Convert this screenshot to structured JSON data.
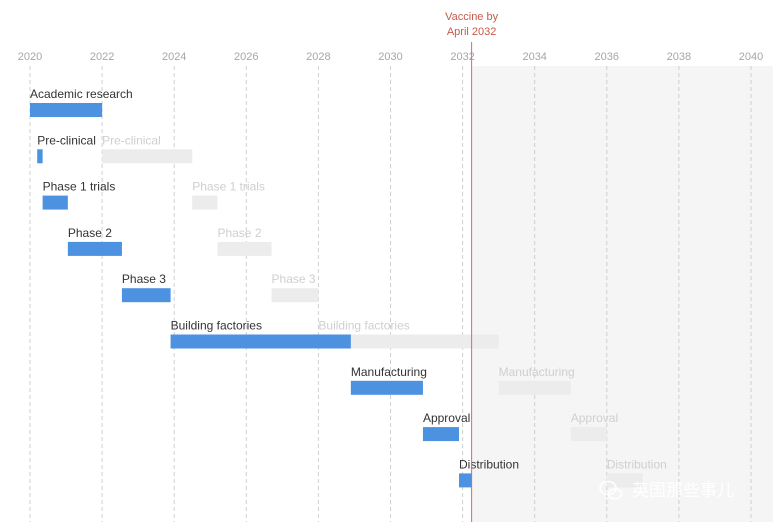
{
  "chart_data": {
    "type": "gantt",
    "x_axis": {
      "ticks": [
        "2020",
        "2022",
        "2024",
        "2026",
        "2028",
        "2030",
        "2032",
        "2034",
        "2036",
        "2038",
        "2040"
      ],
      "range": [
        2020,
        2040
      ]
    },
    "marker": {
      "label_line1": "Vaccine by",
      "label_line2": "April 2032",
      "x": 2032.25,
      "shaded_after": true
    },
    "tasks": [
      {
        "label": "Academic research",
        "start": 2020.0,
        "end": 2022.0,
        "ghost_label": null,
        "ghost_start": null,
        "ghost_end": null
      },
      {
        "label": "Pre-clinical",
        "start": 2020.2,
        "end": 2020.35,
        "ghost_label": "Pre-clinical",
        "ghost_start": 2022.0,
        "ghost_end": 2024.5
      },
      {
        "label": "Phase 1 trials",
        "start": 2020.35,
        "end": 2021.05,
        "ghost_label": "Phase 1 trials",
        "ghost_start": 2024.5,
        "ghost_end": 2025.2
      },
      {
        "label": "Phase 2",
        "start": 2021.05,
        "end": 2022.55,
        "ghost_label": "Phase 2",
        "ghost_start": 2025.2,
        "ghost_end": 2026.7
      },
      {
        "label": "Phase 3",
        "start": 2022.55,
        "end": 2023.9,
        "ghost_label": "Phase 3",
        "ghost_start": 2026.7,
        "ghost_end": 2028.0
      },
      {
        "label": "Building factories",
        "start": 2023.9,
        "end": 2028.9,
        "ghost_label": "Building factories",
        "ghost_start": 2028.0,
        "ghost_end": 2033.0
      },
      {
        "label": "Manufacturing",
        "start": 2028.9,
        "end": 2030.9,
        "ghost_label": "Manufacturing",
        "ghost_start": 2033.0,
        "ghost_end": 2035.0
      },
      {
        "label": "Approval",
        "start": 2030.9,
        "end": 2031.9,
        "ghost_label": "Approval",
        "ghost_start": 2035.0,
        "ghost_end": 2036.0
      },
      {
        "label": "Distribution",
        "start": 2031.9,
        "end": 2032.25,
        "ghost_label": "Distribution",
        "ghost_start": 2036.0,
        "ghost_end": 2037.0
      }
    ],
    "colors": {
      "bar": "#4c92e0",
      "ghost_bar": "#ececec",
      "ghost_text": "#cfcfcf",
      "label_text": "#333333",
      "grid": "#cfcfcf",
      "tick_text": "#a6a6a6",
      "marker": "#d4705a",
      "shade": "#f5f5f5"
    }
  },
  "watermark": {
    "text": "英国那些事儿",
    "icon": "wechat-icon"
  }
}
